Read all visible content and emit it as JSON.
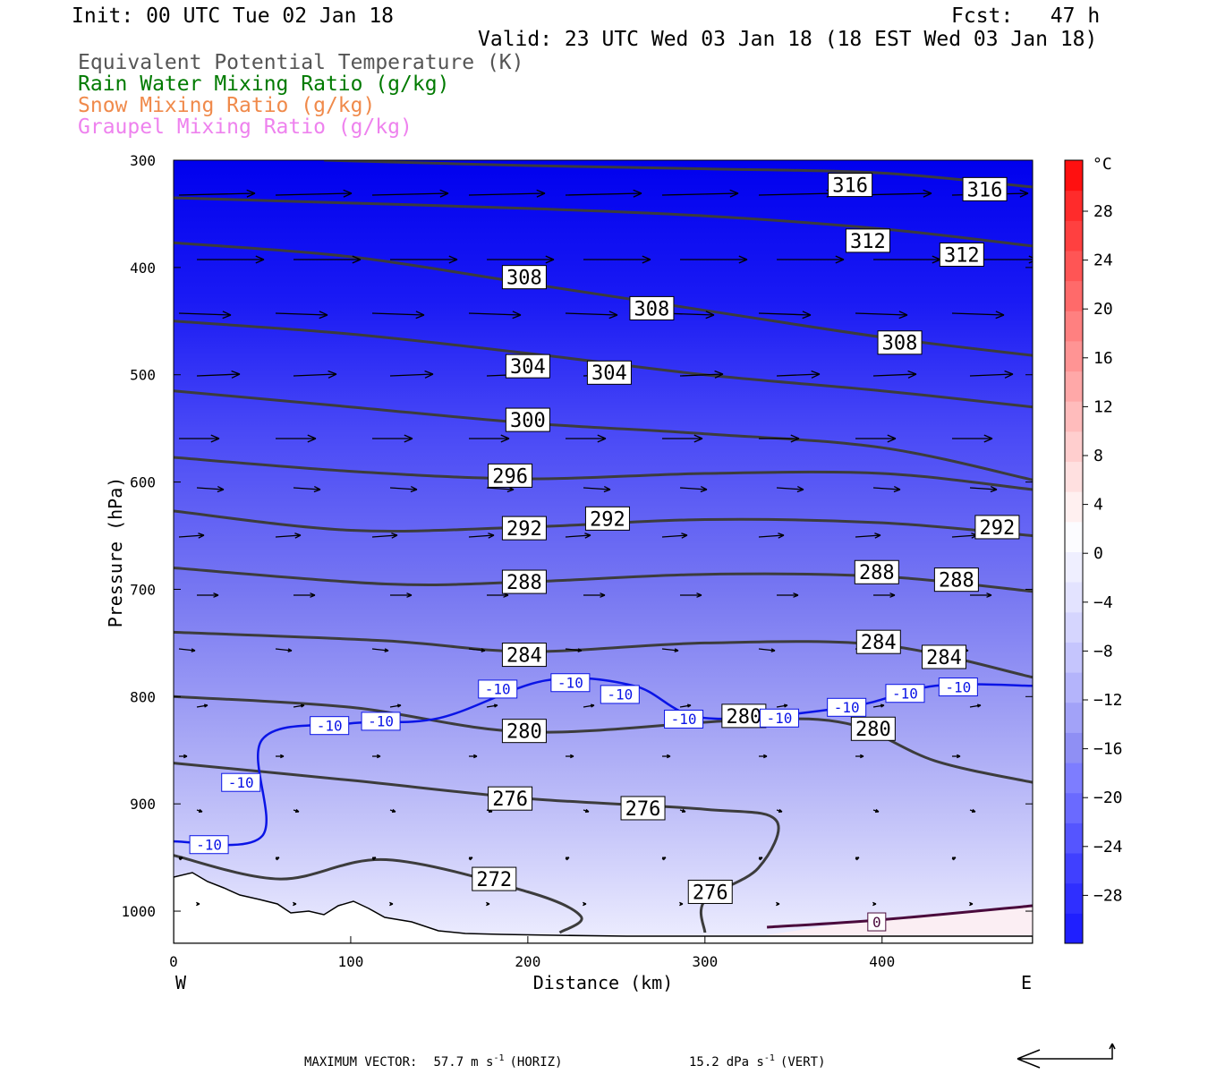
{
  "header": {
    "init": "Init: 00 UTC Tue 02 Jan 18",
    "fcst": "Fcst:   47 h",
    "valid": "Valid: 23 UTC Wed 03 Jan 18 (18 EST Wed 03 Jan 18)",
    "legend": [
      {
        "label": "Equivalent Potential Temperature (K)",
        "color": "#555555"
      },
      {
        "label": "Rain Water Mixing Ratio (g/kg)",
        "color": "#007a00"
      },
      {
        "label": "Snow Mixing Ratio (g/kg)",
        "color": "#f08a4b"
      },
      {
        "label": "Graupel Mixing Ratio (g/kg)",
        "color": "#ee82ee"
      }
    ]
  },
  "axes": {
    "ylabel": "Pressure (hPa)",
    "xlabel": "Distance (km)",
    "west": "W",
    "east": "E",
    "yticks": [
      "300",
      "400",
      "500",
      "600",
      "700",
      "800",
      "900",
      "1000"
    ],
    "xticks": [
      "0",
      "100",
      "200",
      "300",
      "400"
    ]
  },
  "colorbar": {
    "unit": "°C",
    "labels": [
      "28",
      "24",
      "20",
      "16",
      "12",
      "8",
      "4",
      "0",
      "−4",
      "−8",
      "−12",
      "−16",
      "−20",
      "−24",
      "−28"
    ],
    "colors": [
      "#1f1fff",
      "#2f2fff",
      "#4040ff",
      "#5555ff",
      "#6a6aff",
      "#7d7dff",
      "#8f8ff4",
      "#a2a2f8",
      "#b4b4fb",
      "#c5c5fd",
      "#d5d5fe",
      "#e3e3ff",
      "#efefff",
      "#fcfcff",
      "#fff0f0",
      "#ffe0e0",
      "#ffcece",
      "#ffbcbc",
      "#ffa8a8",
      "#ff9494",
      "#ff8080",
      "#ff6a6a",
      "#ff5555",
      "#ff4040",
      "#ff2b2b",
      "#ff1010"
    ]
  },
  "footer": {
    "max_vector_label": "MAXIMUM VECTOR:",
    "horiz_value": "57.7",
    "horiz_unit": "m s",
    "horiz_tag": "(HORIZ)",
    "vert_value": "15.2",
    "vert_unit": "dPa s",
    "vert_tag": "(VERT)",
    "exp": "-1"
  },
  "chart_data": {
    "type": "cross-section contour",
    "x_range_km": [
      0,
      485
    ],
    "y_range_hPa": [
      300,
      1030
    ],
    "shading": "temperature (°C), blue shades, about -30 at 300 hPa to -2 near the surface",
    "theta_e_contours_K": [
      {
        "level": "316",
        "points": [
          [
            85,
            300
          ],
          [
            200,
            305
          ],
          [
            300,
            308
          ],
          [
            400,
            312
          ],
          [
            485,
            325
          ]
        ],
        "labels": [
          [
            382,
            323
          ],
          [
            458,
            327
          ]
        ]
      },
      {
        "level": "312",
        "points": [
          [
            0,
            335
          ],
          [
            100,
            340
          ],
          [
            200,
            345
          ],
          [
            300,
            352
          ],
          [
            400,
            364
          ],
          [
            485,
            380
          ]
        ],
        "labels": [
          [
            392,
            375
          ],
          [
            445,
            388
          ]
        ]
      },
      {
        "level": "308",
        "points": [
          [
            0,
            377
          ],
          [
            100,
            390
          ],
          [
            200,
            415
          ],
          [
            300,
            440
          ],
          [
            400,
            465
          ],
          [
            485,
            482
          ]
        ],
        "labels": [
          [
            198,
            409
          ],
          [
            270,
            438
          ],
          [
            410,
            470
          ]
        ]
      },
      {
        "level": "304",
        "points": [
          [
            0,
            450
          ],
          [
            100,
            462
          ],
          [
            200,
            480
          ],
          [
            300,
            500
          ],
          [
            400,
            515
          ],
          [
            485,
            530
          ]
        ],
        "labels": [
          [
            200,
            492
          ],
          [
            246,
            498
          ]
        ]
      },
      {
        "level": "300",
        "points": [
          [
            0,
            515
          ],
          [
            100,
            530
          ],
          [
            200,
            545
          ],
          [
            300,
            555
          ],
          [
            400,
            568
          ],
          [
            485,
            598
          ]
        ],
        "labels": [
          [
            200,
            542
          ]
        ]
      },
      {
        "level": "296",
        "points": [
          [
            0,
            577
          ],
          [
            100,
            590
          ],
          [
            200,
            597
          ],
          [
            300,
            592
          ],
          [
            400,
            592
          ],
          [
            485,
            607
          ]
        ],
        "labels": [
          [
            190,
            594
          ]
        ]
      },
      {
        "level": "292",
        "points": [
          [
            0,
            627
          ],
          [
            100,
            645
          ],
          [
            200,
            642
          ],
          [
            300,
            635
          ],
          [
            400,
            638
          ],
          [
            485,
            650
          ]
        ],
        "labels": [
          [
            198,
            643
          ],
          [
            245,
            634
          ],
          [
            465,
            642
          ]
        ]
      },
      {
        "level": "288",
        "points": [
          [
            0,
            680
          ],
          [
            120,
            695
          ],
          [
            200,
            693
          ],
          [
            300,
            686
          ],
          [
            400,
            688
          ],
          [
            485,
            702
          ]
        ],
        "labels": [
          [
            198,
            693
          ],
          [
            397,
            684
          ],
          [
            442,
            691
          ]
        ]
      },
      {
        "level": "284",
        "points": [
          [
            0,
            740
          ],
          [
            120,
            748
          ],
          [
            200,
            758
          ],
          [
            300,
            750
          ],
          [
            400,
            752
          ],
          [
            485,
            782
          ]
        ],
        "labels": [
          [
            198,
            761
          ],
          [
            398,
            749
          ],
          [
            435,
            763
          ]
        ]
      },
      {
        "level": "280",
        "points": [
          [
            0,
            800
          ],
          [
            100,
            810
          ],
          [
            200,
            833
          ],
          [
            320,
            822
          ],
          [
            380,
            825
          ],
          [
            430,
            860
          ],
          [
            485,
            880
          ]
        ],
        "labels": [
          [
            198,
            832
          ],
          [
            322,
            818
          ],
          [
            395,
            830
          ]
        ]
      },
      {
        "level": "276",
        "points": [
          [
            0,
            862
          ],
          [
            100,
            878
          ],
          [
            200,
            895
          ],
          [
            300,
            905
          ],
          [
            340,
            915
          ],
          [
            330,
            960
          ],
          [
            300,
            990
          ],
          [
            300,
            1020
          ]
        ],
        "labels": [
          [
            190,
            895
          ],
          [
            265,
            904
          ],
          [
            303,
            982
          ]
        ]
      },
      {
        "level": "272",
        "points": [
          [
            0,
            948
          ],
          [
            60,
            970
          ],
          [
            120,
            952
          ],
          [
            200,
            982
          ],
          [
            230,
            1005
          ],
          [
            218,
            1020
          ]
        ],
        "labels": [
          [
            181,
            970
          ]
        ]
      }
    ],
    "isotherm_minus10": {
      "level": "-10",
      "points": [
        [
          0,
          935
        ],
        [
          50,
          930
        ],
        [
          50,
          840
        ],
        [
          100,
          825
        ],
        [
          150,
          820
        ],
        [
          210,
          785
        ],
        [
          260,
          790
        ],
        [
          300,
          820
        ],
        [
          380,
          810
        ],
        [
          430,
          790
        ],
        [
          485,
          790
        ]
      ],
      "labels": [
        [
          20,
          938
        ],
        [
          38,
          880
        ],
        [
          88,
          827
        ],
        [
          117,
          823
        ],
        [
          183,
          793
        ],
        [
          224,
          787
        ],
        [
          252,
          798
        ],
        [
          288,
          821
        ],
        [
          342,
          820
        ],
        [
          380,
          810
        ],
        [
          413,
          797
        ],
        [
          443,
          791
        ]
      ]
    },
    "isotherm_zero": {
      "level": "0",
      "points": [
        [
          335,
          1015
        ],
        [
          400,
          1008
        ],
        [
          485,
          995
        ]
      ],
      "labels": [
        [
          397,
          1010
        ]
      ]
    }
  }
}
